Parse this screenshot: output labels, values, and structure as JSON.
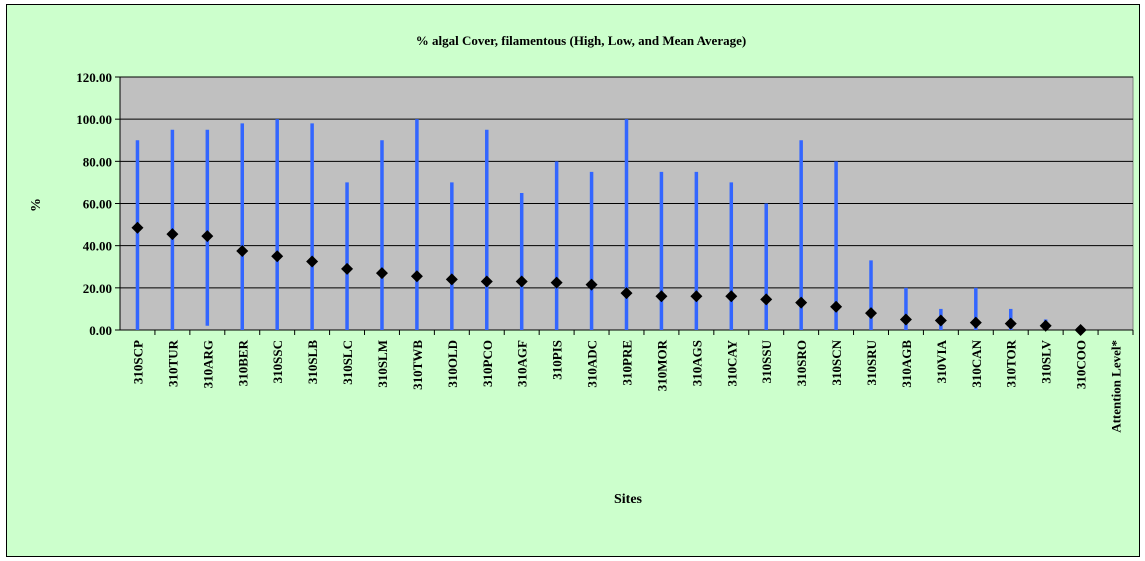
{
  "chart_data": {
    "type": "high-low-mean",
    "title": "% algal Cover, filamentous (High, Low, and Mean Average)",
    "xlabel": "Sites",
    "ylabel": "%",
    "ylim": [
      0,
      120
    ],
    "yticks": [
      "0.00",
      "20.00",
      "40.00",
      "60.00",
      "80.00",
      "100.00",
      "120.00"
    ],
    "grid": true,
    "legend": "none",
    "colors": {
      "plot_bg": "#c0c0c0",
      "frame_bg": "#ccffcc",
      "range_line": "#3366ff",
      "mean_marker": "#000000"
    },
    "categories": [
      "310SCP",
      "310TUR",
      "310ARG",
      "310BER",
      "310SSC",
      "310SLB",
      "310SLC",
      "310SLM",
      "310TWB",
      "310OLD",
      "310PCO",
      "310AGF",
      "310PIS",
      "310ADC",
      "310PRE",
      "310MOR",
      "310AGS",
      "310CAY",
      "310SSU",
      "310SRO",
      "310SCN",
      "310SRU",
      "310AGB",
      "310VIA",
      "310CAN",
      "310TOR",
      "310SLV",
      "310COO",
      "Attention Level*"
    ],
    "series": [
      {
        "name": "High",
        "values": [
          90,
          95,
          95,
          98,
          100,
          98,
          70,
          90,
          100,
          70,
          95,
          65,
          80,
          75,
          100,
          75,
          75,
          70,
          60,
          90,
          80,
          33,
          20,
          10,
          20,
          10,
          5,
          0,
          null
        ]
      },
      {
        "name": "Low",
        "values": [
          0,
          0,
          2,
          0,
          0,
          0,
          0,
          0,
          0,
          0,
          0,
          0,
          0,
          0,
          0,
          0,
          0,
          0,
          0,
          0,
          0,
          0,
          0,
          0,
          0,
          0,
          0,
          0,
          null
        ]
      },
      {
        "name": "Mean",
        "values": [
          48.5,
          45.5,
          44.5,
          37.5,
          35,
          32.5,
          29,
          27,
          25.5,
          24,
          23,
          23,
          22.5,
          21.5,
          17.5,
          16,
          16,
          16,
          14.5,
          13,
          11,
          8,
          5,
          4.5,
          3.5,
          3,
          2,
          0,
          null
        ]
      }
    ]
  }
}
